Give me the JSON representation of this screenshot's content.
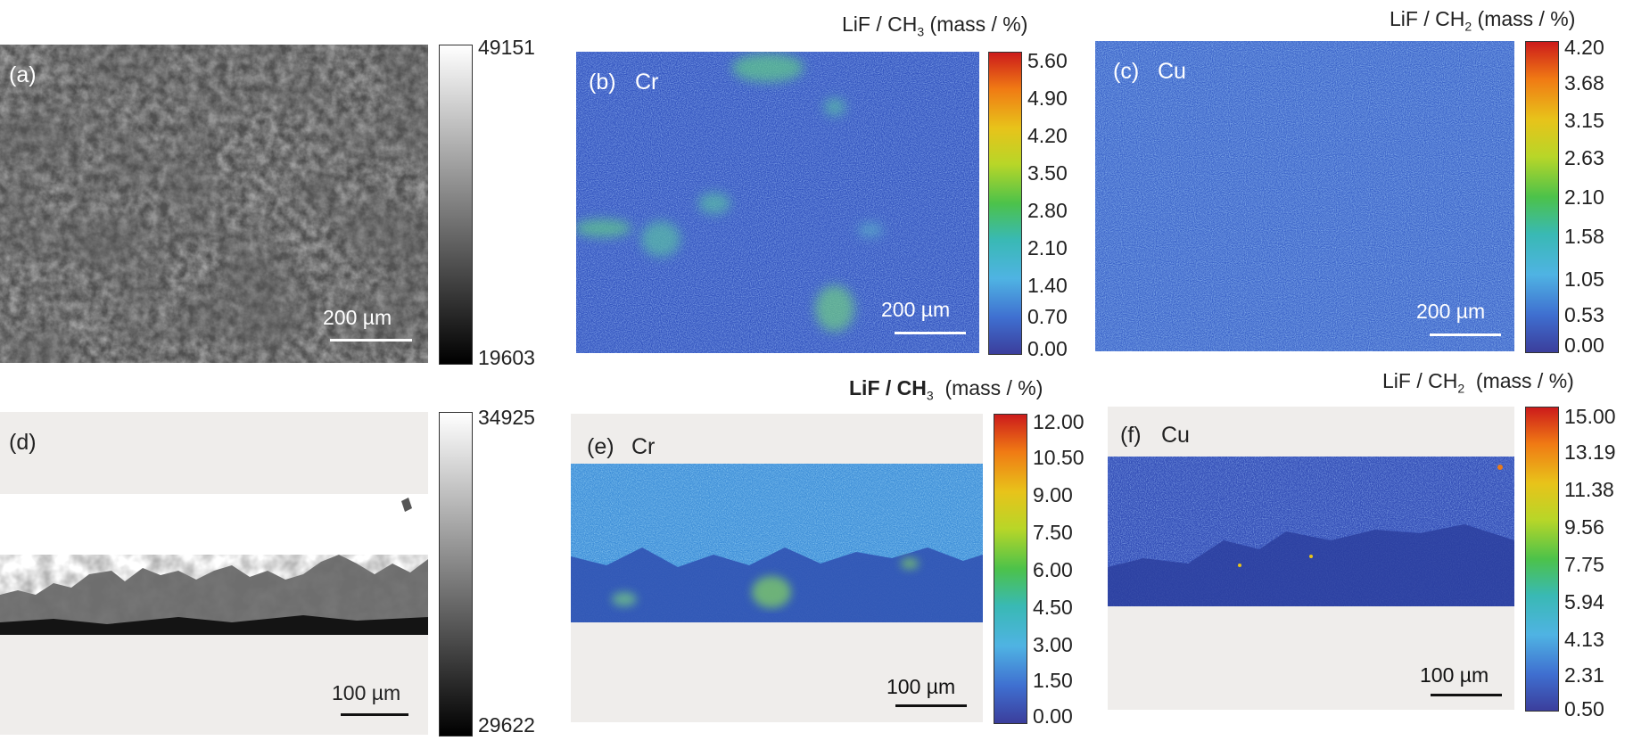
{
  "panels": [
    {
      "id": "a",
      "label": "(a)",
      "element": "",
      "scalebar": "200 µm",
      "type": "sem-top",
      "colorbar": {
        "max": "49151",
        "min": "19603",
        "scale": "gray"
      }
    },
    {
      "id": "b",
      "label": "(b)",
      "element": "Cr",
      "scalebar": "200 µm",
      "type": "map-top",
      "units": {
        "ratio": "LiF / CH",
        "sub": "3",
        "unit": "(mass / %)"
      },
      "colorbar": {
        "ticks": [
          "5.60",
          "4.90",
          "4.20",
          "3.50",
          "2.80",
          "2.10",
          "1.40",
          "0.70",
          "0.00"
        ],
        "scale": "jet"
      }
    },
    {
      "id": "c",
      "label": "(c)",
      "element": "Cu",
      "scalebar": "200 µm",
      "type": "map-top",
      "units": {
        "ratio": "LiF / CH",
        "sub": "2",
        "unit": "(mass / %)"
      },
      "colorbar": {
        "ticks": [
          "4.20",
          "3.68",
          "3.15",
          "2.63",
          "2.10",
          "1.58",
          "1.05",
          "0.53",
          "0.00"
        ],
        "scale": "jet"
      }
    },
    {
      "id": "d",
      "label": "(d)",
      "element": "",
      "scalebar": "100 µm",
      "type": "sem-cross",
      "colorbar": {
        "max": "34925",
        "min": "29622",
        "scale": "gray"
      }
    },
    {
      "id": "e",
      "label": "(e)",
      "element": "Cr",
      "scalebar": "100 µm",
      "type": "map-cross",
      "units": {
        "ratio": "LiF / CH",
        "sub": "3",
        "unit": "(mass / %)"
      },
      "colorbar": {
        "ticks": [
          "12.00",
          "10.50",
          "9.00",
          "7.50",
          "6.00",
          "4.50",
          "3.00",
          "1.50",
          "0.00"
        ],
        "scale": "jet"
      }
    },
    {
      "id": "f",
      "label": "(f)",
      "element": "Cu",
      "scalebar": "100 µm",
      "type": "map-cross",
      "units": {
        "ratio": "LiF / CH",
        "sub": "2",
        "unit": "(mass / %)"
      },
      "colorbar": {
        "ticks": [
          "15.00",
          "13.19",
          "11.38",
          "9.56",
          "7.75",
          "5.94",
          "4.13",
          "2.31",
          "0.50"
        ],
        "scale": "jet"
      }
    }
  ],
  "colors": {
    "map_base": "#3a5fc4",
    "map_dark": "#2b3f9e",
    "map_highlight": "#5bd07a",
    "panel_bg": "#efedeb"
  }
}
